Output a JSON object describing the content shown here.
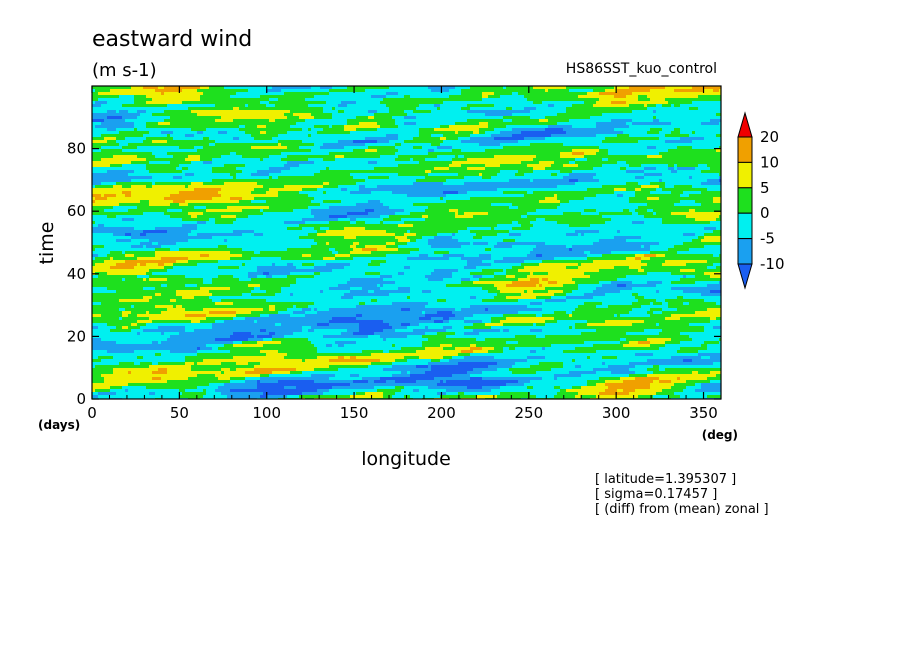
{
  "title": "eastward wind",
  "units": "(m s-1)",
  "dataset": "HS86SST_kuo_control",
  "annotations": [
    "[ latitude=1.395307 ]",
    "[ sigma=0.17457 ]",
    "[ (diff) from (mean) zonal ]"
  ],
  "chart_data": {
    "type": "heatmap",
    "title": "eastward wind",
    "subtitle": "(m s-1)",
    "xlabel": "longitude",
    "xunit": "(deg)",
    "ylabel": "time",
    "yunit": "(days)",
    "xlim": [
      0,
      360
    ],
    "ylim": [
      0,
      100
    ],
    "xticks": [
      0,
      50,
      100,
      150,
      200,
      250,
      300,
      350
    ],
    "yticks": [
      0,
      20,
      40,
      60,
      80
    ],
    "contour_levels": [
      -10,
      -5,
      0,
      5,
      10,
      20
    ],
    "colorbar_labels": [
      "20",
      "10",
      "5",
      "0",
      "-5",
      "-10"
    ],
    "colors": [
      "#1a5ef0",
      "#1aa0f0",
      "#00f0f0",
      "#1ee01e",
      "#f0f000",
      "#f0a000",
      "#f00000"
    ],
    "grid": false,
    "colorbar_position": "right"
  }
}
